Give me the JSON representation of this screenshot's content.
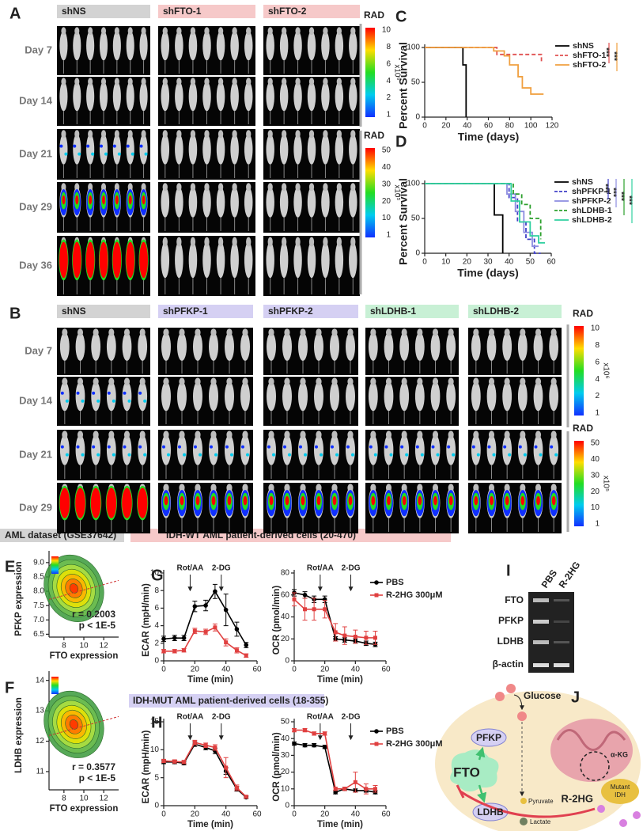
{
  "figure": {
    "panel_a": {
      "label": "A",
      "groups": [
        "shNS",
        "shFTO-1",
        "shFTO-2"
      ],
      "days": [
        "Day 7",
        "Day 14",
        "Day 21",
        "Day 29",
        "Day 36"
      ]
    },
    "panel_b": {
      "label": "B",
      "groups": [
        "shNS",
        "shPFKP-1",
        "shPFKP-2",
        "shLDHB-1",
        "shLDHB-2"
      ],
      "days": [
        "Day 7",
        "Day 14",
        "Day 21",
        "Day 29"
      ]
    },
    "colorbars": [
      {
        "title": "RAD",
        "unit": "x10⁶",
        "ticks": [
          10,
          8,
          6,
          4,
          2,
          1
        ]
      },
      {
        "title": "RAD",
        "unit": "x10⁵",
        "ticks": [
          50,
          40,
          30,
          20,
          10,
          1
        ]
      },
      {
        "title": "RAD",
        "unit": "x10⁶",
        "ticks": [
          10,
          8,
          6,
          4,
          2,
          1
        ]
      },
      {
        "title": "RAD",
        "unit": "x10⁵",
        "ticks": [
          50,
          40,
          30,
          20,
          10,
          1
        ]
      }
    ],
    "headers": {
      "dataset": "AML dataset (GSE37642)",
      "wt": "IDH-WT AML patient-derived cells (20-470)",
      "mut": "IDH-MUT AML patient-derived cells (18-355)"
    },
    "panel_i": {
      "label": "I",
      "columns": [
        "PBS",
        "R-2HG"
      ],
      "rows": [
        "FTO",
        "PFKP",
        "LDHB",
        "β-actin"
      ]
    },
    "panel_j": {
      "label": "J",
      "glucose": "Glucose",
      "pfkp": "PFKP",
      "fto": "FTO",
      "ldhb": "LDHB",
      "pyruvate": "Pyruvate",
      "lactate": "Lactate",
      "akg": "α-KG",
      "mutant_idh": [
        "Mutant",
        "IDH"
      ],
      "r2hg": "R-2HG"
    }
  },
  "chart_data": [
    {
      "type": "survival",
      "panel": "C",
      "x_label": "Time (days)",
      "y_label": "Percent Survival",
      "xlim": [
        0,
        120
      ],
      "xticks": [
        0,
        20,
        40,
        60,
        80,
        100,
        120
      ],
      "ylim": [
        0,
        100
      ],
      "yticks": [
        0,
        50,
        100
      ],
      "series": [
        {
          "name": "shNS",
          "color": "#000000",
          "dashed": false,
          "x": [
            0,
            36,
            36,
            39,
            39
          ],
          "values": [
            100,
            100,
            75,
            75,
            0
          ]
        },
        {
          "name": "shFTO-1",
          "color": "#e05050",
          "dashed": true,
          "x": [
            0,
            68,
            68,
            110,
            110
          ],
          "values": [
            100,
            100,
            90,
            90,
            80
          ]
        },
        {
          "name": "shFTO-2",
          "color": "#f0a040",
          "dashed": false,
          "x": [
            0,
            65,
            65,
            75,
            75,
            80,
            80,
            88,
            88,
            92,
            92,
            100,
            100,
            112
          ],
          "values": [
            100,
            100,
            95,
            95,
            88,
            88,
            75,
            75,
            58,
            58,
            42,
            42,
            33,
            33
          ]
        }
      ],
      "significance": [
        {
          "label": "***",
          "color": "#e05050"
        },
        {
          "label": "***",
          "color": "#f0a040"
        }
      ]
    },
    {
      "type": "survival",
      "panel": "D",
      "x_label": "Time (days)",
      "y_label": "Percent Survival",
      "xlim": [
        0,
        60
      ],
      "xticks": [
        0,
        10,
        20,
        30,
        40,
        50,
        60
      ],
      "ylim": [
        0,
        100
      ],
      "yticks": [
        0,
        50,
        100
      ],
      "series": [
        {
          "name": "shNS",
          "color": "#000000",
          "dashed": false,
          "x": [
            0,
            33,
            33,
            37,
            37
          ],
          "values": [
            100,
            100,
            55,
            55,
            0
          ]
        },
        {
          "name": "shPFKP-1",
          "color": "#4040c8",
          "dashed": true,
          "x": [
            0,
            40,
            40,
            44,
            44,
            48,
            48,
            52,
            52,
            55
          ],
          "values": [
            100,
            100,
            80,
            80,
            45,
            45,
            20,
            20,
            0,
            0
          ]
        },
        {
          "name": "shPFKP-2",
          "color": "#8c8ce0",
          "dashed": false,
          "x": [
            0,
            39,
            39,
            43,
            43,
            47,
            47,
            51,
            51,
            54
          ],
          "values": [
            100,
            100,
            85,
            85,
            60,
            60,
            30,
            30,
            10,
            10
          ]
        },
        {
          "name": "shLDHB-1",
          "color": "#2ca02c",
          "dashed": true,
          "x": [
            0,
            42,
            42,
            46,
            46,
            50,
            50,
            55,
            55
          ],
          "values": [
            100,
            100,
            85,
            85,
            70,
            70,
            50,
            50,
            20
          ]
        },
        {
          "name": "shLDHB-2",
          "color": "#30d0a0",
          "dashed": false,
          "x": [
            0,
            41,
            41,
            45,
            45,
            50,
            50,
            54,
            54,
            57
          ],
          "values": [
            100,
            100,
            75,
            75,
            45,
            45,
            25,
            25,
            15,
            15
          ]
        }
      ],
      "significance": [
        {
          "label": "***",
          "color": "#4040c8"
        },
        {
          "label": "***",
          "color": "#8c8ce0"
        },
        {
          "label": "***",
          "color": "#2ca02c"
        },
        {
          "label": "***",
          "color": "#30d0a0"
        }
      ]
    },
    {
      "type": "density",
      "panel": "E",
      "x_label": "FTO expression",
      "y_label": "PFKP expression",
      "xlim": [
        6.5,
        13.5
      ],
      "xticks": [
        8,
        10,
        12
      ],
      "ylim": [
        6.4,
        9.3
      ],
      "yticks": [
        6.5,
        {
          "value": 7,
          "label": "7.0"
        },
        7.5,
        {
          "value": 8,
          "label": "8.0"
        },
        8.5,
        {
          "value": 9,
          "label": "9.0"
        }
      ],
      "r_label": "r = 0.2003",
      "p_label": "p < 1E-5"
    },
    {
      "type": "density",
      "panel": "F",
      "x_label": "FTO expression",
      "y_label": "LDHB expression",
      "xlim": [
        6.5,
        13.5
      ],
      "xticks": [
        8,
        10,
        12
      ],
      "ylim": [
        10.4,
        14.2
      ],
      "yticks": [
        11,
        12,
        13,
        14
      ],
      "r_label": "r = 0.3577",
      "p_label": "p < 1E-5"
    },
    {
      "type": "line",
      "panel": "G",
      "x_label": "Time (min)",
      "y_label": "ECAR (mpH/min)",
      "xlim": [
        0,
        60
      ],
      "xticks": [
        0,
        20,
        40,
        60
      ],
      "ylim": [
        0,
        10
      ],
      "yticks": [
        0,
        2,
        4,
        6,
        8,
        10
      ],
      "annotations": [
        {
          "label": "Rot/AA",
          "x": 17
        },
        {
          "label": "2-DG",
          "x": 37
        }
      ],
      "x": [
        0,
        7,
        13,
        20,
        27,
        33,
        40,
        47,
        53
      ],
      "series": [
        {
          "color": "#000000",
          "marker": "circle",
          "values": [
            2.5,
            2.6,
            2.6,
            6.2,
            6.3,
            7.9,
            5.8,
            3.6,
            1.8
          ],
          "errors": [
            0.3,
            0.3,
            0.3,
            0.6,
            0.6,
            0.8,
            1.8,
            0.8,
            0.3
          ]
        },
        {
          "color": "#e04040",
          "marker": "square",
          "values": [
            1.1,
            1.1,
            1.2,
            3.4,
            3.3,
            3.8,
            2.1,
            1.2,
            0.6
          ],
          "errors": [
            0.2,
            0.2,
            0.2,
            0.3,
            0.3,
            0.4,
            0.4,
            0.3,
            0.2
          ]
        }
      ]
    },
    {
      "type": "line",
      "x_label": "Time (min)",
      "y_label": "OCR (pmol/min)",
      "xlim": [
        0,
        60
      ],
      "xticks": [
        0,
        20,
        40,
        60
      ],
      "ylim": [
        0,
        80
      ],
      "yticks": [
        0,
        20,
        40,
        60,
        80
      ],
      "legend": true,
      "annotations": [
        {
          "label": "Rot/AA",
          "x": 17
        },
        {
          "label": "2-DG",
          "x": 37
        }
      ],
      "x": [
        0,
        7,
        13,
        20,
        27,
        33,
        40,
        47,
        53
      ],
      "series": [
        {
          "name": "PBS",
          "color": "#000000",
          "marker": "circle",
          "values": [
            62,
            60,
            56,
            56,
            20,
            19,
            18,
            16,
            15
          ],
          "errors": [
            3,
            3,
            3,
            3,
            2,
            2,
            2,
            2,
            2
          ]
        },
        {
          "name": "R-2HG 300μM",
          "color": "#e04040",
          "marker": "square",
          "values": [
            56,
            47,
            47,
            47,
            26,
            23,
            22,
            21,
            21
          ],
          "errors": [
            6,
            10,
            10,
            8,
            8,
            8,
            6,
            6,
            6
          ]
        }
      ]
    },
    {
      "type": "line",
      "panel": "H",
      "x_label": "Time (min)",
      "y_label": "ECAR (mpH/min)",
      "xlim": [
        0,
        60
      ],
      "xticks": [
        0,
        20,
        40,
        60
      ],
      "ylim": [
        0,
        15
      ],
      "yticks": [
        0,
        5,
        10,
        15
      ],
      "annotations": [
        {
          "label": "Rot/AA",
          "x": 17
        },
        {
          "label": "2-DG",
          "x": 37
        }
      ],
      "x": [
        0,
        7,
        13,
        20,
        27,
        33,
        40,
        47,
        53
      ],
      "series": [
        {
          "color": "#000000",
          "marker": "circle",
          "values": [
            7.8,
            7.8,
            7.6,
            11,
            10.4,
            9.8,
            6.2,
            3,
            1.5
          ],
          "errors": [
            0.3,
            0.3,
            0.3,
            0.4,
            0.4,
            0.5,
            0.6,
            0.4,
            0.2
          ]
        },
        {
          "color": "#e04040",
          "marker": "square",
          "values": [
            8,
            7.9,
            7.8,
            11.3,
            10.8,
            10.4,
            6.8,
            3.2,
            1.6
          ],
          "errors": [
            0.3,
            0.3,
            0.3,
            0.4,
            0.4,
            0.5,
            1.8,
            0.5,
            0.2
          ]
        }
      ]
    },
    {
      "type": "line",
      "x_label": "Time (min)",
      "y_label": "OCR (pmol/min)",
      "xlim": [
        0,
        60
      ],
      "xticks": [
        0,
        20,
        40,
        60
      ],
      "ylim": [
        0,
        50
      ],
      "yticks": [
        0,
        10,
        20,
        30,
        40,
        50
      ],
      "legend": true,
      "annotations": [
        {
          "label": "Rot/AA",
          "x": 17
        },
        {
          "label": "2-DG",
          "x": 37
        }
      ],
      "x": [
        0,
        7,
        13,
        20,
        27,
        33,
        40,
        47,
        53
      ],
      "series": [
        {
          "name": "PBS",
          "color": "#000000",
          "marker": "circle",
          "values": [
            37,
            36,
            36,
            35,
            8,
            10,
            9,
            9,
            8
          ],
          "errors": [
            1,
            1,
            1,
            1,
            1,
            1,
            1,
            1,
            1
          ]
        },
        {
          "name": "R-2HG 300μM",
          "color": "#e04040",
          "marker": "square",
          "values": [
            45,
            45,
            43,
            43,
            10,
            10,
            14,
            10,
            10
          ],
          "errors": [
            1,
            1,
            1,
            1,
            1,
            1,
            6,
            3,
            2
          ]
        }
      ]
    }
  ]
}
